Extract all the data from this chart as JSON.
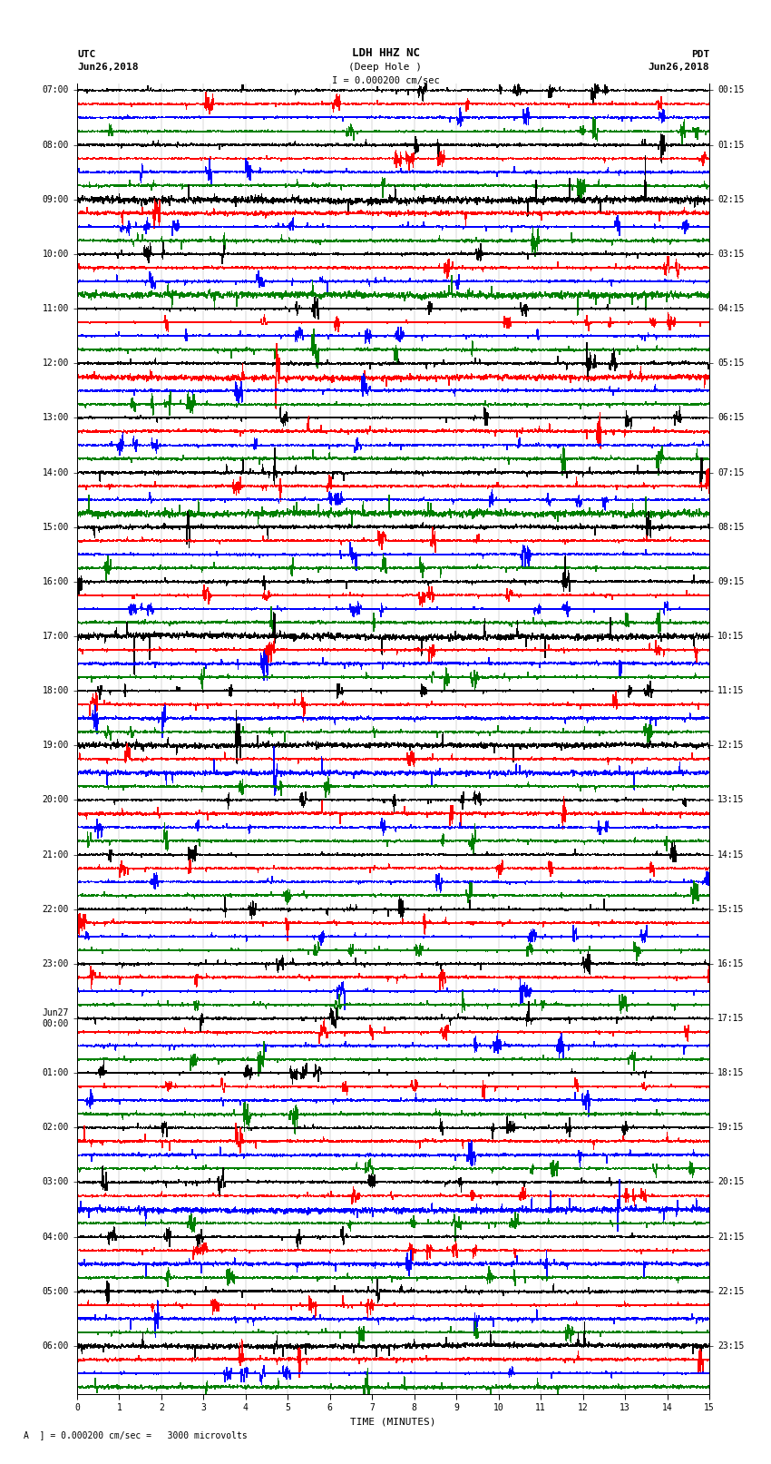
{
  "title_line1": "LDH HHZ NC",
  "title_line2": "(Deep Hole )",
  "scale_label": "I = 0.000200 cm/sec",
  "bottom_label": "TIME (MINUTES)",
  "bottom_note": "A  ] = 0.000200 cm/sec =   3000 microvolts",
  "utc_times": [
    "07:00",
    "08:00",
    "09:00",
    "10:00",
    "11:00",
    "12:00",
    "13:00",
    "14:00",
    "15:00",
    "16:00",
    "17:00",
    "18:00",
    "19:00",
    "20:00",
    "21:00",
    "22:00",
    "23:00",
    "Jun27\n00:00",
    "01:00",
    "02:00",
    "03:00",
    "04:00",
    "05:00",
    "06:00"
  ],
  "pdt_times": [
    "00:15",
    "01:15",
    "02:15",
    "03:15",
    "04:15",
    "05:15",
    "06:15",
    "07:15",
    "08:15",
    "09:15",
    "10:15",
    "11:15",
    "12:15",
    "13:15",
    "14:15",
    "15:15",
    "16:15",
    "17:15",
    "18:15",
    "19:15",
    "20:15",
    "21:15",
    "22:15",
    "23:15"
  ],
  "trace_colors": [
    "black",
    "red",
    "blue",
    "green"
  ],
  "num_groups": 24,
  "traces_per_group": 4,
  "x_ticks": [
    0,
    1,
    2,
    3,
    4,
    5,
    6,
    7,
    8,
    9,
    10,
    11,
    12,
    13,
    14,
    15
  ],
  "x_lim": [
    0,
    15
  ],
  "fig_width": 8.5,
  "fig_height": 16.13,
  "dpi": 100,
  "background_color": "white",
  "trace_amplitude": 0.38,
  "noise_scale": 0.18,
  "spike_probability": 0.015,
  "spike_scale": 1.2,
  "burst_probability": 0.002,
  "burst_scale": 2.5
}
